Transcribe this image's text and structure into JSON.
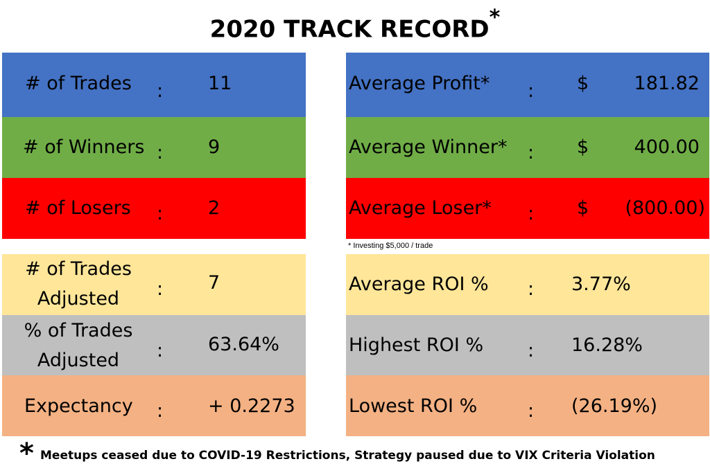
{
  "title": "2020 TRACK RECORD",
  "title_mark": "*",
  "colors": {
    "blue": "#4472c4",
    "green": "#70ad47",
    "red": "#ff0000",
    "yellow": "#ffe699",
    "gray": "#bfbfbf",
    "peach": "#f4b183"
  },
  "left": [
    {
      "label": "# of Trades",
      "sep": ":",
      "value": "11"
    },
    {
      "label": "# of Winners",
      "sep": ":",
      "value": "9"
    },
    {
      "label": "# of Losers",
      "sep": ":",
      "value": "2"
    },
    {
      "label_l1": "# of Trades",
      "label_l2": "Adjusted",
      "sep": ":",
      "value": "7"
    },
    {
      "label_l1": "% of Trades",
      "label_l2": "Adjusted",
      "sep": ":",
      "value": "63.64%"
    },
    {
      "label": "Expectancy",
      "sep": ":",
      "value": "+ 0.2273"
    }
  ],
  "right": [
    {
      "label": "Average Profit*",
      "sep": ":",
      "currency": "$",
      "value": "181.82"
    },
    {
      "label": "Average Winner*",
      "sep": ":",
      "currency": "$",
      "value": "400.00"
    },
    {
      "label": "Average Loser*",
      "sep": ":",
      "currency": "$",
      "value": "(800.00)"
    },
    {
      "label": "Average ROI %",
      "sep": ":",
      "value": "3.77%"
    },
    {
      "label": "Highest ROI %",
      "sep": ":",
      "value": "16.28%"
    },
    {
      "label": "Lowest ROI %",
      "sep": ":",
      "value": "(26.19%)"
    }
  ],
  "note": "* Investing $5,000 / trade",
  "footer_mark": "*",
  "footer": "Meetups ceased due to COVID-19 Restrictions, Strategy paused due to VIX Criteria Violation"
}
